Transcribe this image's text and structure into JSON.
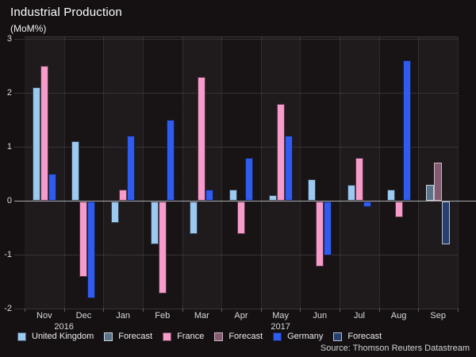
{
  "chart_data": {
    "type": "bar",
    "title": "Industrial Production",
    "subtitle": "(MoM%)",
    "source": "Source: Thomson Reuters Datastream",
    "categories": [
      "Nov",
      "Dec",
      "Jan",
      "Feb",
      "Mar",
      "Apr",
      "May",
      "Jun",
      "Jul",
      "Aug",
      "Sep"
    ],
    "year_labels": [
      {
        "label": "2016",
        "pos": 1.0
      },
      {
        "label": "2017",
        "pos": 6.5
      }
    ],
    "yticks": [
      3,
      2,
      1,
      0,
      -1,
      -2
    ],
    "ylim": [
      -2,
      3
    ],
    "grid": true,
    "legend_position": "bottom",
    "series": [
      {
        "name": "United Kingdom",
        "color": "#9cc9ef",
        "forecast": false,
        "values": [
          2.1,
          1.1,
          -0.4,
          -0.8,
          -0.6,
          0.2,
          0.1,
          0.4,
          0.3,
          0.2,
          null
        ]
      },
      {
        "name": "Forecast",
        "color": "#5a7589",
        "border_color": "#c6d2da",
        "forecast": true,
        "values": [
          null,
          null,
          null,
          null,
          null,
          null,
          null,
          null,
          null,
          null,
          0.3
        ]
      },
      {
        "name": "France",
        "color": "#f79bca",
        "forecast": false,
        "values": [
          2.5,
          -1.4,
          0.2,
          -1.7,
          2.3,
          -0.6,
          1.8,
          -1.2,
          0.8,
          -0.3,
          null
        ]
      },
      {
        "name": "Forecast",
        "color": "#815c70",
        "border_color": "#cdb6c2",
        "forecast": true,
        "values": [
          null,
          null,
          null,
          null,
          null,
          null,
          null,
          null,
          null,
          null,
          0.7
        ]
      },
      {
        "name": "Germany",
        "color": "#2f5cee",
        "forecast": false,
        "values": [
          0.5,
          -1.8,
          1.2,
          1.5,
          0.2,
          0.8,
          1.2,
          -1.0,
          -0.1,
          2.6,
          null
        ]
      },
      {
        "name": "Forecast",
        "color": "#28406f",
        "border_color": "#b5c0cd",
        "forecast": true,
        "values": [
          null,
          null,
          null,
          null,
          null,
          null,
          null,
          null,
          null,
          null,
          -0.8
        ]
      }
    ]
  }
}
